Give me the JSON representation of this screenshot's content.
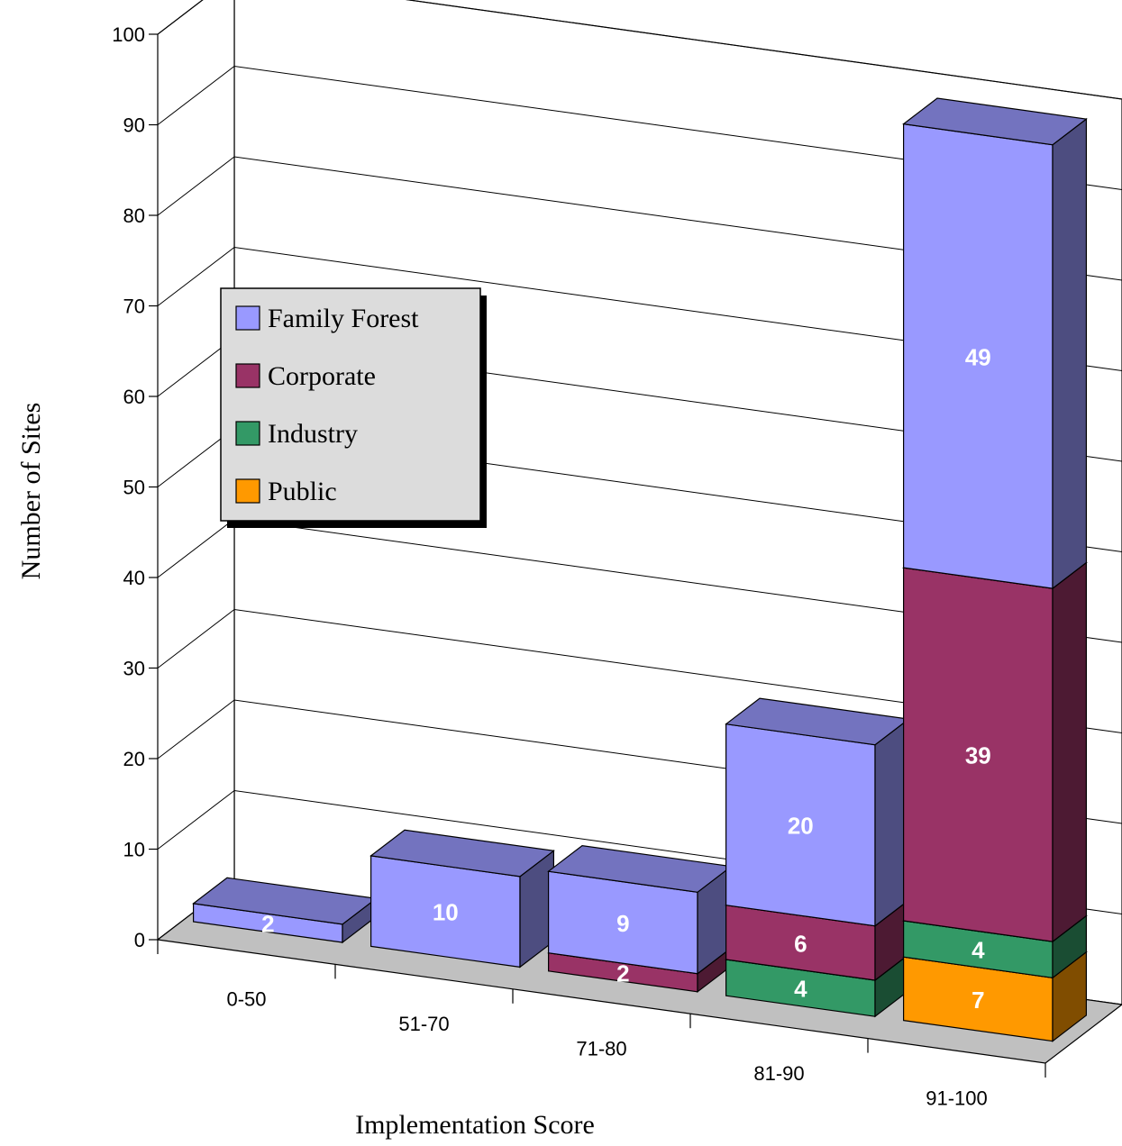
{
  "chart_data": {
    "type": "bar",
    "stacked": true,
    "three_d": true,
    "title": "",
    "xlabel": "Implementation Score",
    "ylabel": "Number of Sites",
    "ylim": [
      0,
      100
    ],
    "yticks": [
      "0",
      "10",
      "20",
      "30",
      "40",
      "50",
      "60",
      "70",
      "80",
      "90",
      "100"
    ],
    "categories": [
      "0-50",
      "51-70",
      "71-80",
      "81-90",
      "91-100"
    ],
    "series": [
      {
        "name": "Public",
        "color": "#ff9900",
        "values": [
          0,
          0,
          0,
          0,
          7
        ]
      },
      {
        "name": "Industry",
        "color": "#339966",
        "values": [
          0,
          0,
          0,
          4,
          4
        ]
      },
      {
        "name": "Corporate",
        "color": "#993366",
        "values": [
          0,
          0,
          2,
          6,
          39
        ]
      },
      {
        "name": "Family Forest",
        "color": "#9999ff",
        "values": [
          2,
          10,
          9,
          20,
          49
        ]
      }
    ],
    "legend": {
      "position": "upper-left",
      "items": [
        "Family Forest",
        "Corporate",
        "Industry",
        "Public"
      ]
    },
    "grid": true
  }
}
